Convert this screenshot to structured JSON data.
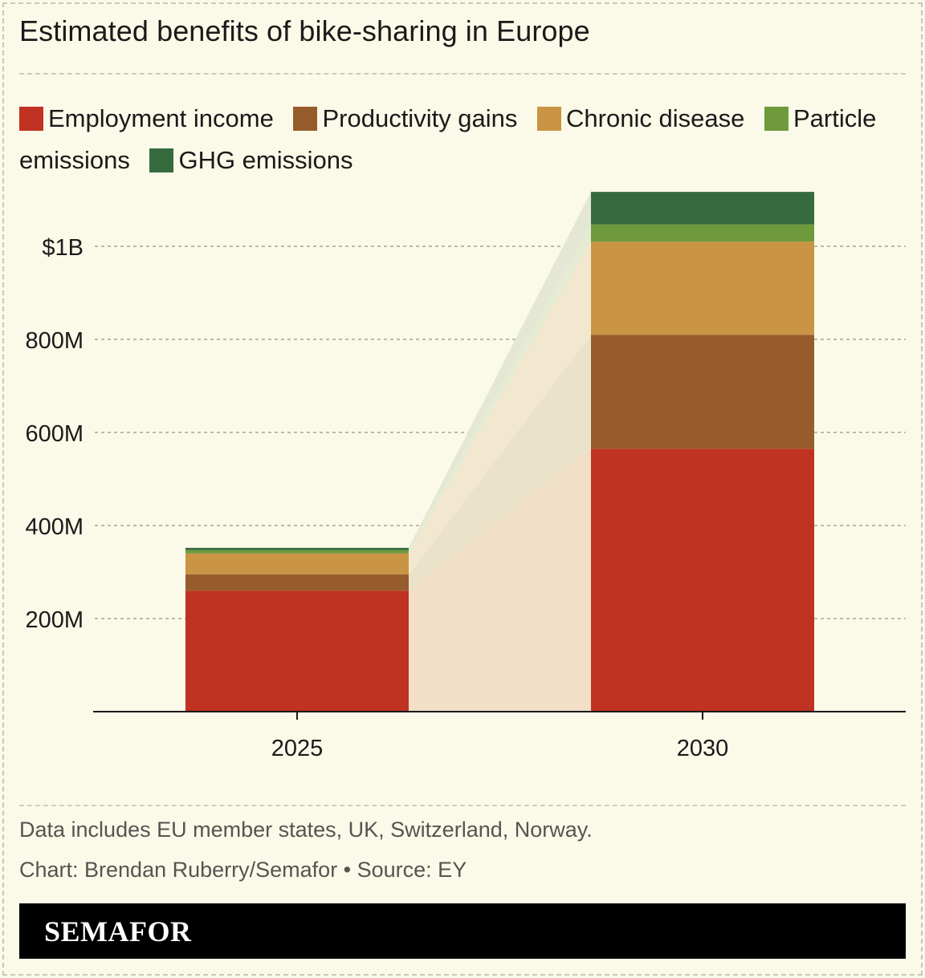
{
  "title": "Estimated benefits of bike-sharing in Europe",
  "legend": [
    {
      "label": "Employment income",
      "color": "#c03221"
    },
    {
      "label": "Productivity gains",
      "color": "#965c2c"
    },
    {
      "label": "Chronic disease",
      "color": "#c99444"
    },
    {
      "label": "Particle emissions",
      "color": "#6e9a3c"
    },
    {
      "label": "GHG emissions",
      "color": "#356b3f"
    }
  ],
  "chart_data": {
    "type": "bar",
    "stacked": true,
    "categories": [
      "2025",
      "2030"
    ],
    "series": [
      {
        "name": "Employment income",
        "color": "#c03221",
        "values": [
          260,
          565
        ]
      },
      {
        "name": "Productivity gains",
        "color": "#965c2c",
        "values": [
          35,
          245
        ]
      },
      {
        "name": "Chronic disease",
        "color": "#c99444",
        "values": [
          45,
          200
        ]
      },
      {
        "name": "Particle emissions",
        "color": "#6e9a3c",
        "values": [
          7,
          37
        ]
      },
      {
        "name": "GHG emissions",
        "color": "#356b3f",
        "values": [
          5,
          70
        ]
      }
    ],
    "yticks": [
      {
        "value": 200,
        "label": "200M"
      },
      {
        "value": 400,
        "label": "400M"
      },
      {
        "value": 600,
        "label": "600M"
      },
      {
        "value": 800,
        "label": "800M"
      },
      {
        "value": 1000,
        "label": "$1B"
      }
    ],
    "ylim": [
      0,
      1117
    ],
    "grid": true,
    "legend_position": "top",
    "connector_fills": [
      "#f1dfc8",
      "#ebe3c9",
      "#f2e8cf",
      "#e6ebd4",
      "#e3e7d3"
    ]
  },
  "footnote": "Data includes EU member states, UK, Switzerland, Norway.",
  "credit": "Chart: Brendan Ruberry/Semafor • Source: EY",
  "brand": "SEMAFOR"
}
